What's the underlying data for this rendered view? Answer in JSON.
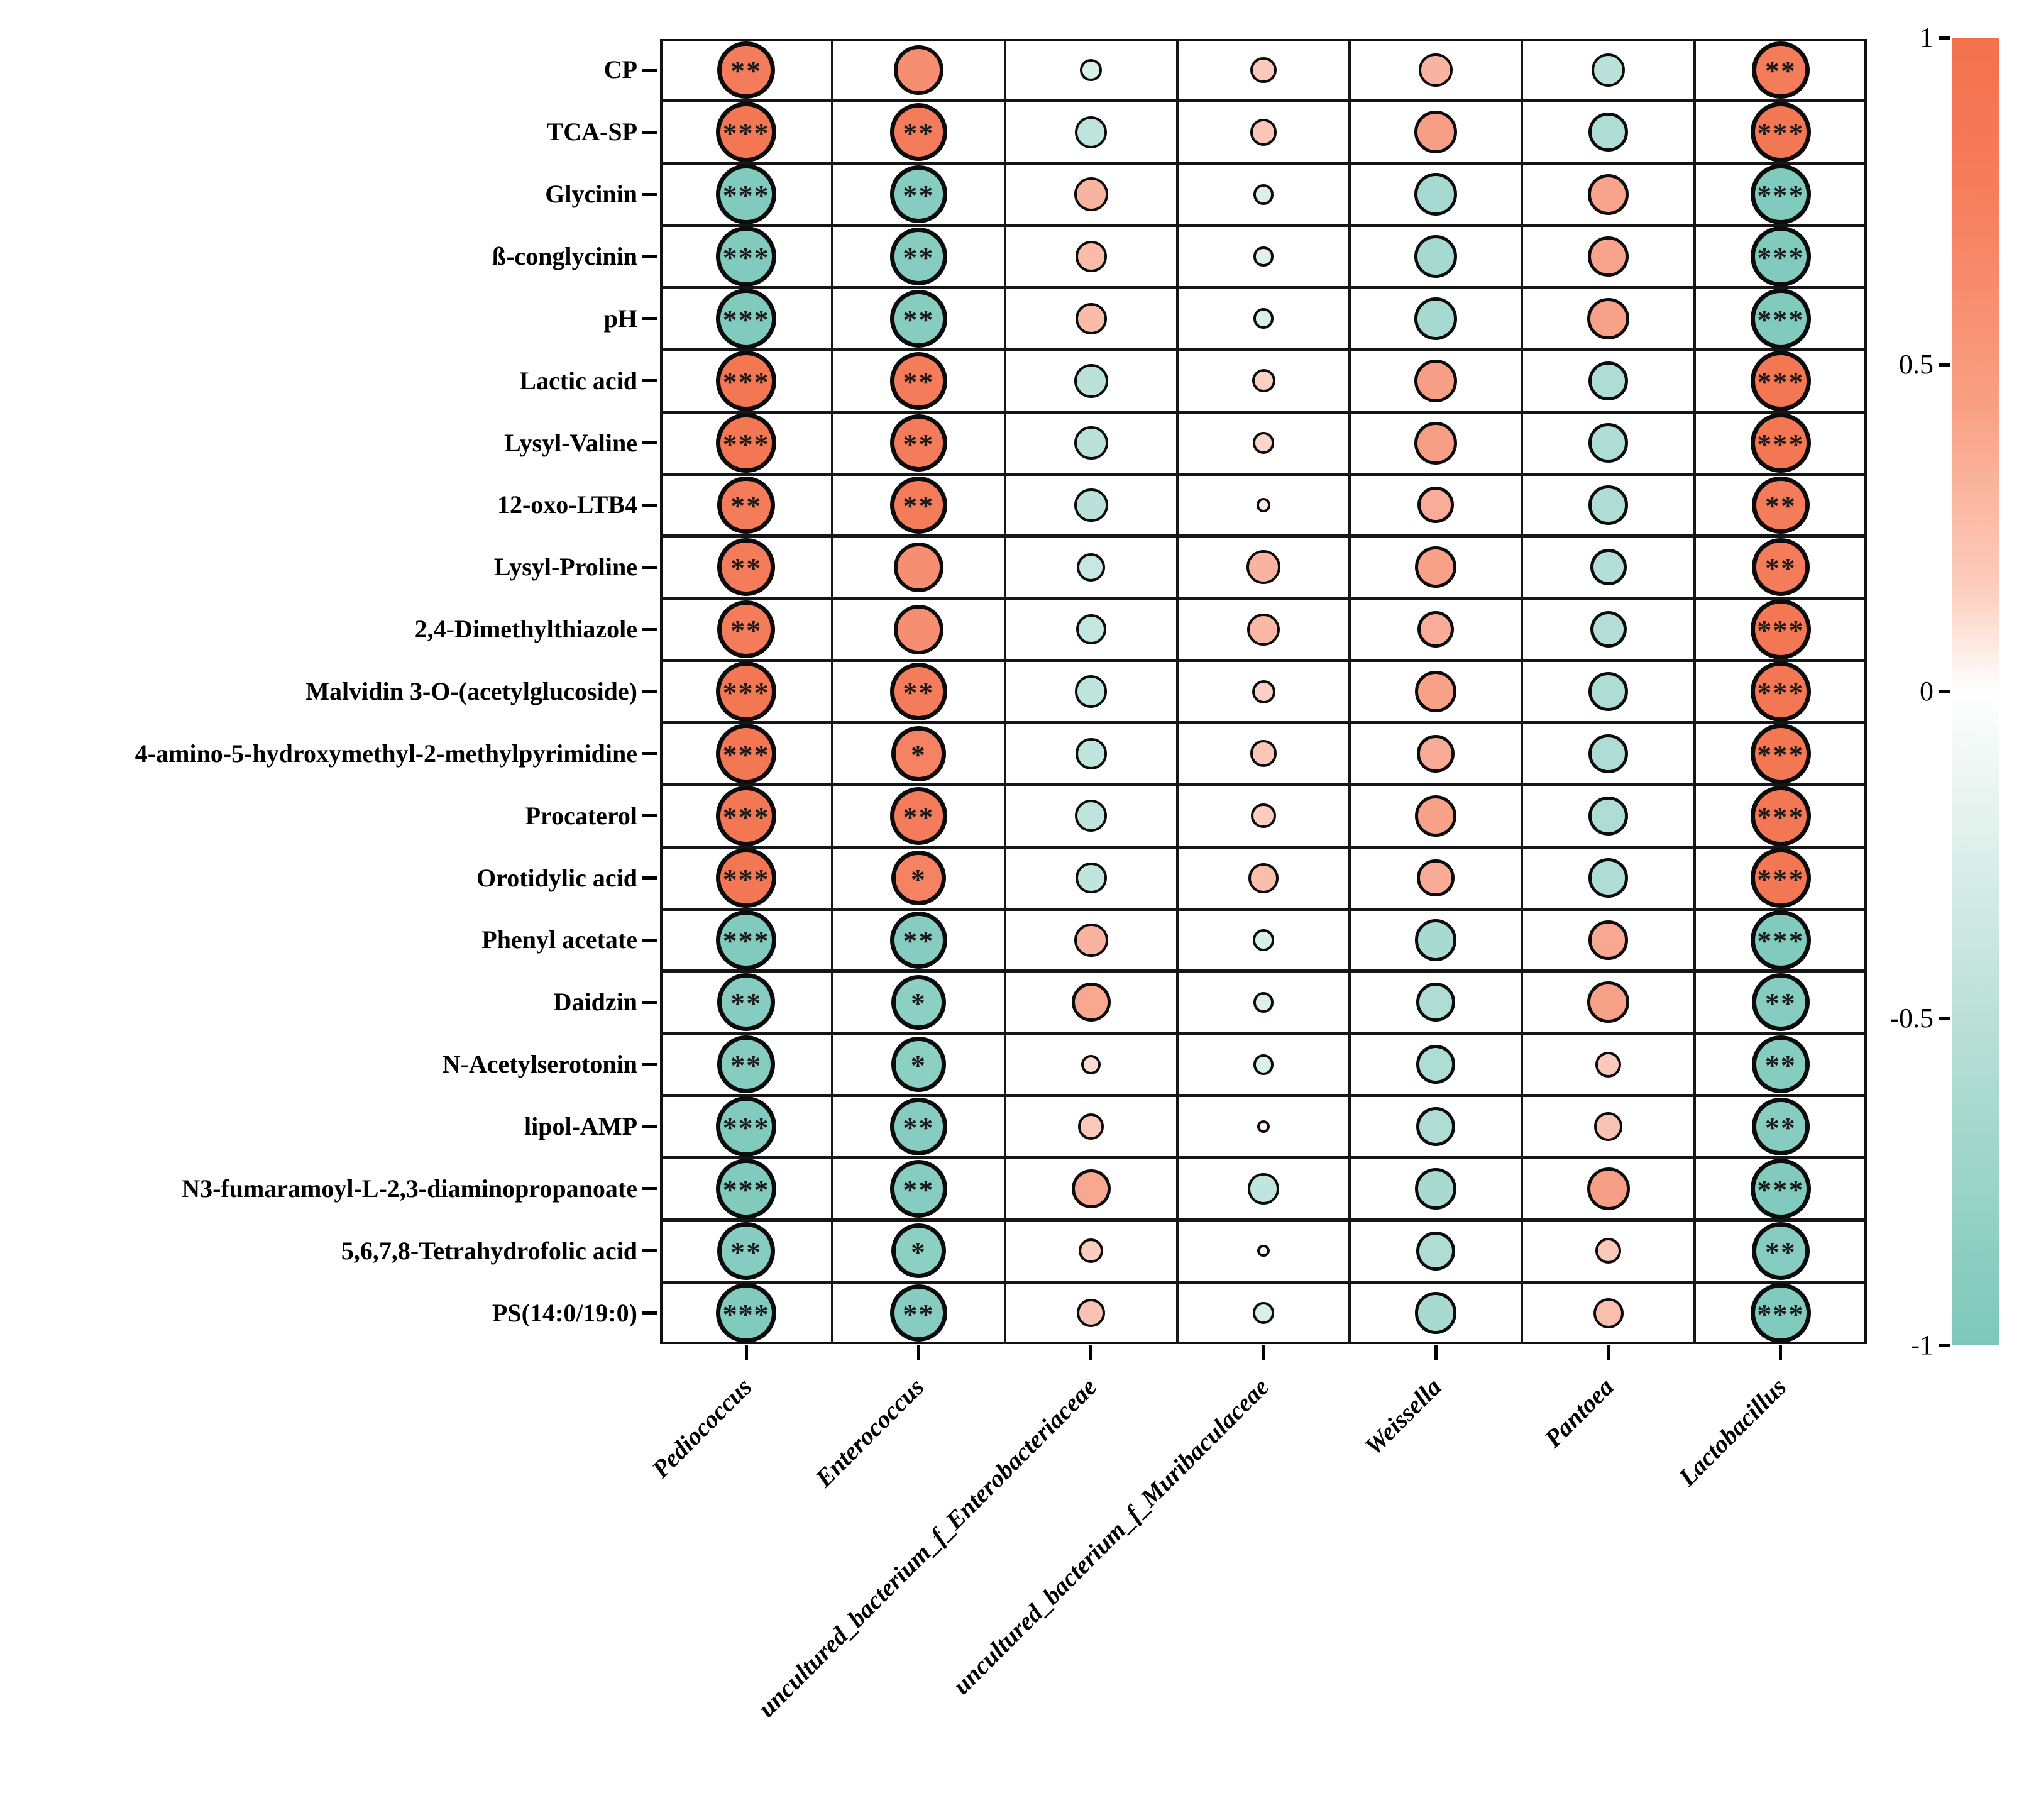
{
  "chart_data": {
    "type": "heatmap",
    "subtype": "correlation-bubble-matrix",
    "title": "",
    "xlabel": "",
    "ylabel": "",
    "grid": true,
    "legend_position": "right",
    "size_encoding": "circle diameter proportional to |correlation|",
    "color_encoding": "diverging orange (positive) to teal (negative)",
    "rows": [
      "CP",
      "TCA-SP",
      "Glycinin",
      "ß-conglycinin",
      "pH",
      "Lactic acid",
      "Lysyl-Valine",
      "12-oxo-LTB4",
      "Lysyl-Proline",
      "2,4-Dimethylthiazole",
      "Malvidin 3-O-(acetylglucoside)",
      "4-amino-5-hydroxymethyl-2-methylpyrimidine",
      "Procaterol",
      "Orotidylic acid",
      "Phenyl acetate",
      "Daidzin",
      "N-Acetylserotonin",
      "lipol-AMP",
      "N3-fumaramoyl-L-2,3-diaminopropanoate",
      "5,6,7,8-Tetrahydrofolic acid",
      "PS(14:0/19:0)"
    ],
    "columns": [
      "Pediococcus",
      "Enterococcus",
      "uncultured_bacterium_f_Enterobacteriaceae",
      "uncultured_bacterium_f_Muribaculaceae",
      "Weissella",
      "Pantoea",
      "Lactobacillus"
    ],
    "values": [
      [
        0.9,
        0.75,
        -0.22,
        0.3,
        0.45,
        -0.45,
        0.9
      ],
      [
        0.95,
        0.9,
        -0.42,
        0.32,
        0.62,
        -0.55,
        0.95
      ],
      [
        -0.95,
        -0.9,
        0.45,
        -0.2,
        -0.62,
        0.58,
        -0.95
      ],
      [
        -0.95,
        -0.9,
        0.4,
        -0.18,
        -0.62,
        0.58,
        -0.95
      ],
      [
        -0.95,
        -0.9,
        0.4,
        -0.2,
        -0.62,
        0.6,
        -0.95
      ],
      [
        0.95,
        0.9,
        -0.45,
        0.25,
        0.62,
        -0.55,
        0.95
      ],
      [
        0.95,
        0.9,
        -0.45,
        0.22,
        0.62,
        -0.55,
        0.95
      ],
      [
        0.9,
        0.9,
        -0.45,
        0.08,
        0.5,
        -0.55,
        0.9
      ],
      [
        0.9,
        0.75,
        -0.35,
        0.45,
        0.6,
        -0.5,
        0.9
      ],
      [
        0.9,
        0.75,
        -0.38,
        0.42,
        0.5,
        -0.5,
        0.95
      ],
      [
        0.95,
        0.9,
        -0.42,
        0.25,
        0.6,
        -0.55,
        0.95
      ],
      [
        0.95,
        0.85,
        -0.4,
        0.32,
        0.52,
        -0.55,
        0.95
      ],
      [
        0.95,
        0.9,
        -0.42,
        0.28,
        0.6,
        -0.55,
        0.95
      ],
      [
        0.95,
        0.85,
        -0.4,
        0.38,
        0.52,
        -0.55,
        0.95
      ],
      [
        -0.95,
        -0.9,
        0.45,
        -0.22,
        -0.6,
        0.55,
        -0.95
      ],
      [
        -0.9,
        -0.85,
        0.55,
        -0.2,
        -0.55,
        0.6,
        -0.9
      ],
      [
        -0.9,
        -0.85,
        0.18,
        -0.2,
        -0.55,
        0.3,
        -0.9
      ],
      [
        -0.95,
        -0.9,
        0.3,
        0.05,
        -0.55,
        0.35,
        -0.9
      ],
      [
        -0.95,
        -0.9,
        0.55,
        -0.4,
        -0.6,
        0.62,
        -0.95
      ],
      [
        -0.9,
        -0.85,
        0.28,
        0.04,
        -0.55,
        0.3,
        -0.9
      ],
      [
        -0.95,
        -0.9,
        0.35,
        -0.22,
        -0.6,
        0.38,
        -0.95
      ]
    ],
    "significance": [
      [
        "**",
        "",
        "",
        "",
        "",
        "",
        "**"
      ],
      [
        "***",
        "**",
        "",
        "",
        "",
        "",
        "***"
      ],
      [
        "***",
        "**",
        "",
        "",
        "",
        "",
        "***"
      ],
      [
        "***",
        "**",
        "",
        "",
        "",
        "",
        "***"
      ],
      [
        "***",
        "**",
        "",
        "",
        "",
        "",
        "***"
      ],
      [
        "***",
        "**",
        "",
        "",
        "",
        "",
        "***"
      ],
      [
        "***",
        "**",
        "",
        "",
        "",
        "",
        "***"
      ],
      [
        "**",
        "**",
        "",
        "",
        "",
        "",
        "**"
      ],
      [
        "**",
        "",
        "",
        "",
        "",
        "",
        "**"
      ],
      [
        "**",
        "",
        "",
        "",
        "",
        "",
        "***"
      ],
      [
        "***",
        "**",
        "",
        "",
        "",
        "",
        "***"
      ],
      [
        "***",
        "*",
        "",
        "",
        "",
        "",
        "***"
      ],
      [
        "***",
        "**",
        "",
        "",
        "",
        "",
        "***"
      ],
      [
        "***",
        "*",
        "",
        "",
        "",
        "",
        "***"
      ],
      [
        "***",
        "**",
        "",
        "",
        "",
        "",
        "***"
      ],
      [
        "**",
        "*",
        "",
        "",
        "",
        "",
        "**"
      ],
      [
        "**",
        "*",
        "",
        "",
        "",
        "",
        "**"
      ],
      [
        "***",
        "**",
        "",
        "",
        "",
        "",
        "**"
      ],
      [
        "***",
        "**",
        "",
        "",
        "",
        "",
        "***"
      ],
      [
        "**",
        "*",
        "",
        "",
        "",
        "",
        "**"
      ],
      [
        "***",
        "**",
        "",
        "",
        "",
        "",
        "***"
      ]
    ],
    "colorbar": {
      "max": 1,
      "min": -1,
      "ticks": [
        "1",
        "0.5",
        "0",
        "-0.5",
        "-1"
      ],
      "positive_color": "#F4714D",
      "zero_color": "#FFFFFF",
      "negative_color": "#7CC8BB"
    }
  }
}
